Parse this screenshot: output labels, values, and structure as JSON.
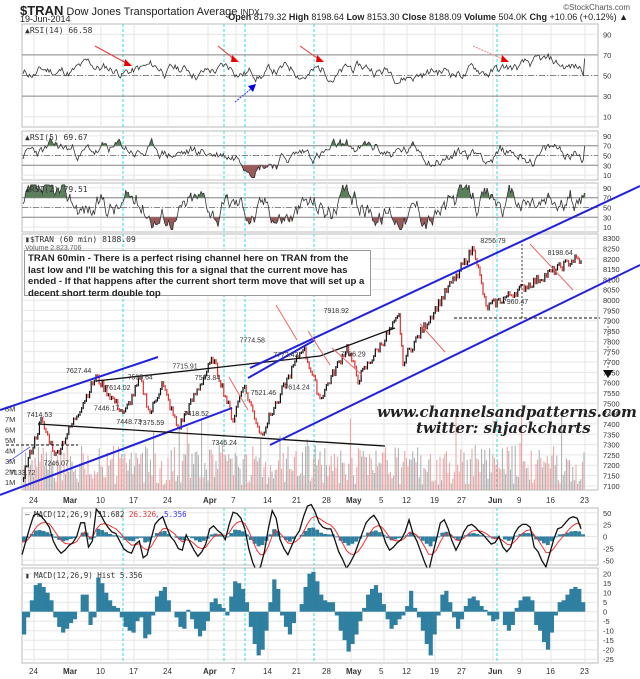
{
  "header": {
    "symbol": "$TRAN",
    "name": "Dow Jones Transportation Average",
    "exchange": "INDX",
    "date": "19-Jun-2014",
    "open_label": "Open",
    "open": "8179.32",
    "high_label": "High",
    "high": "8198.64",
    "low_label": "Low",
    "low": "8153.30",
    "close_label": "Close",
    "close": "8188.09",
    "volume_label": "Volume",
    "volume": "504.0K",
    "chg_label": "Chg",
    "chg": "+10.06 (+0.12%) ▲",
    "copyright": "©StockCharts.com"
  },
  "note": "TRAN 60min - There is a perfect rising channel here on TRAN from the last low and I'll be watching this for a signal that the current move has ended - If that happens after the current short term move that will set up a decent short term double top",
  "watermark": {
    "line1": "www.channelsandpatterns.com",
    "line2": "twitter: shjackcharts"
  },
  "chart_data": [
    {
      "type": "line",
      "title": "RSI(14) 66.58",
      "yticks": [
        10,
        30,
        50,
        70,
        90
      ],
      "ylim": [
        0,
        100
      ],
      "levels": [
        30,
        50,
        70
      ],
      "last": 66.58
    },
    {
      "type": "line",
      "title": "RSI(5) 69.67",
      "yticks": [
        10,
        30,
        50,
        70,
        90
      ],
      "ylim": [
        0,
        100
      ],
      "last": 69.67
    },
    {
      "type": "line",
      "title": "RSI(2) 79.51",
      "yticks": [
        10,
        30,
        50,
        70,
        90
      ],
      "ylim": [
        0,
        100
      ],
      "last": 79.51
    },
    {
      "type": "line",
      "title": "$TRAN (60 min) 8188.09",
      "subtitle": "Volume 2,823,706",
      "ylim": [
        7080,
        8320
      ],
      "yticks": [
        7100,
        7150,
        7200,
        7250,
        7300,
        7350,
        7400,
        7450,
        7500,
        7550,
        7600,
        7650,
        7700,
        7750,
        7800,
        7850,
        7900,
        7950,
        8000,
        8050,
        8100,
        8150,
        8200,
        8250,
        8300
      ],
      "volume_ticks": [
        "1M",
        "2M",
        "3M",
        "4M",
        "5M",
        "6M",
        "7M",
        "8M"
      ],
      "x_ticks": [
        "24",
        "Mar",
        "10",
        "17",
        "24",
        "Apr",
        "7",
        "14",
        "21",
        "28",
        "May",
        "5",
        "12",
        "19",
        "27",
        "Jun",
        "9",
        "16",
        "23"
      ],
      "annotations": [
        {
          "label": "7133.72",
          "x": 0.0,
          "y": 7133.72
        },
        {
          "label": "7414.53",
          "x": 0.03,
          "y": 7414.53
        },
        {
          "label": "7246.07",
          "x": 0.06,
          "y": 7246.07
        },
        {
          "label": "7627.44",
          "x": 0.1,
          "y": 7627.44
        },
        {
          "label": "7614.02",
          "x": 0.17,
          "y": 7614.02
        },
        {
          "label": "7446.17",
          "x": 0.15,
          "y": 7446.17
        },
        {
          "label": "7595.64",
          "x": 0.21,
          "y": 7595.64
        },
        {
          "label": "7448.73",
          "x": 0.19,
          "y": 7448.73
        },
        {
          "label": "7375.59",
          "x": 0.23,
          "y": 7375.59
        },
        {
          "label": "7715.91",
          "x": 0.29,
          "y": 7715.91
        },
        {
          "label": "7593.84",
          "x": 0.33,
          "y": 7593.84
        },
        {
          "label": "7418.52",
          "x": 0.31,
          "y": 7418.52
        },
        {
          "label": "7346.24",
          "x": 0.36,
          "y": 7346.24
        },
        {
          "label": "7774.58",
          "x": 0.41,
          "y": 7774.58
        },
        {
          "label": "7772.43",
          "x": 0.47,
          "y": 7772.43
        },
        {
          "label": "7614.24",
          "x": 0.49,
          "y": 7614.24
        },
        {
          "label": "7521.46",
          "x": 0.43,
          "y": 7521.46
        },
        {
          "label": "7918.92",
          "x": 0.56,
          "y": 7918.92
        },
        {
          "label": "7706.29",
          "x": 0.59,
          "y": 7706.29
        },
        {
          "label": "8256.79",
          "x": 0.84,
          "y": 8256.79
        },
        {
          "label": "7960.47",
          "x": 0.88,
          "y": 7960.47
        },
        {
          "label": "8198.64",
          "x": 0.96,
          "y": 8198.64
        }
      ],
      "series": [
        {
          "name": "$TRAN",
          "values": [
            7133.72,
            7414.53,
            7246.07,
            7627.44,
            7446.17,
            7614.02,
            7448.73,
            7595.64,
            7375.59,
            7715.91,
            7418.52,
            7593.84,
            7346.24,
            7774.58,
            7521.46,
            7772.43,
            7614.24,
            7918.92,
            7706.29,
            8256.79,
            7960.47,
            8198.64,
            8188.09
          ]
        }
      ],
      "target_level": 7960,
      "target_arrow_to": 7670
    },
    {
      "type": "line",
      "title": "MACD(12,26,9) 31.682, 26.326, 5.356",
      "ylim": [
        -60,
        60
      ],
      "yticks": [
        -50,
        -25,
        0,
        25,
        50
      ],
      "series": [
        {
          "name": "MACD",
          "last": 31.682,
          "color": "#000000"
        },
        {
          "name": "Signal",
          "last": 26.326,
          "color": "#e03030"
        },
        {
          "name": "Hist",
          "last": 5.356,
          "color": "#2f7fa0"
        }
      ]
    },
    {
      "type": "bar",
      "title": "MACD(12,26,9) Hist 5.356",
      "ylim": [
        -27,
        23
      ],
      "yticks": [
        -25,
        -20,
        -15,
        -10,
        -5,
        0,
        5,
        10,
        15,
        20
      ],
      "x_ticks": [
        "24",
        "Mar",
        "10",
        "17",
        "24",
        "Apr",
        "7",
        "14",
        "21",
        "28",
        "May",
        "5",
        "12",
        "19",
        "27",
        "Jun",
        "9",
        "16",
        "23"
      ],
      "values": [
        -12,
        -3,
        6,
        14,
        15,
        13,
        10,
        6,
        -3,
        -8,
        -11,
        -9,
        -6,
        -4,
        0,
        9,
        9,
        -7,
        -3,
        18,
        15,
        10,
        6,
        3,
        2,
        -3,
        -8,
        -10,
        -11,
        -5,
        -3,
        -14,
        -12,
        -2,
        8,
        11,
        13,
        6,
        0,
        -3,
        -8,
        -9,
        1,
        -4,
        -9,
        -13,
        -10,
        -5,
        5,
        7,
        4,
        2,
        -2,
        8,
        16,
        15,
        12,
        5,
        -8,
        -17,
        -23,
        -20,
        -10,
        5,
        17,
        12,
        -2,
        -8,
        -12,
        -6,
        0,
        4,
        13,
        20,
        21,
        16,
        9,
        6,
        5,
        5,
        -2,
        -10,
        -15,
        -21,
        -17,
        -12,
        -5,
        2,
        9,
        12,
        14,
        10,
        4,
        -4,
        -9,
        -7,
        -4,
        -2,
        3,
        11,
        2,
        -3,
        -10,
        -17,
        -23,
        -12,
        -2,
        9,
        11,
        5,
        -3,
        -9,
        -4,
        3,
        7,
        8,
        6,
        3,
        1,
        -2,
        -5,
        -4,
        0,
        -7,
        -10,
        -7,
        2,
        6,
        8,
        8,
        6,
        -7,
        -10,
        -16,
        -20,
        -11,
        -2,
        5,
        6,
        9,
        12,
        13,
        12,
        5
      ]
    }
  ],
  "date_axis": {
    "labels": [
      "24",
      "Mar",
      "10",
      "17",
      "24",
      "Apr",
      "7",
      "14",
      "21",
      "28",
      "May",
      "5",
      "12",
      "19",
      "27",
      "Jun",
      "9",
      "16",
      "23"
    ],
    "bold": [
      "Mar",
      "Apr",
      "May",
      "Jun"
    ]
  }
}
